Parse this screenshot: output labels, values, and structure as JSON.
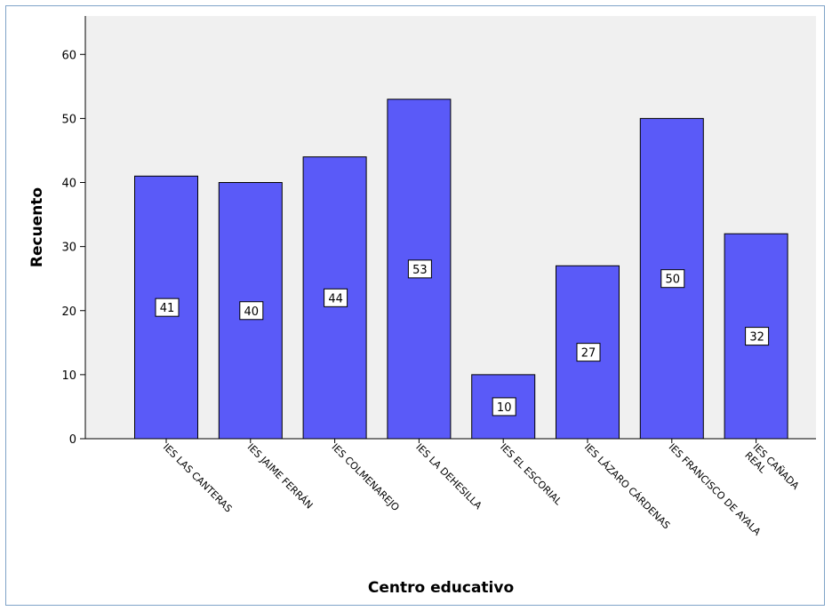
{
  "chart_data": {
    "type": "bar",
    "categories": [
      [
        "IES LAS CANTERAS"
      ],
      [
        "IES JAIME FERRÁN"
      ],
      [
        "IES COLMENAREJO"
      ],
      [
        "IES LA DEHESILLA"
      ],
      [
        "IES EL ESCORIAL"
      ],
      [
        "IES LÁZARO CÁRDENAS"
      ],
      [
        "IES FRANCISCO DE AYALA"
      ],
      [
        "IES CAÑADA",
        "REAL"
      ]
    ],
    "values": [
      41,
      40,
      44,
      53,
      10,
      27,
      50,
      32
    ],
    "data_labels": [
      "41",
      "40",
      "44",
      "53",
      "10",
      "27",
      "50",
      "32"
    ],
    "xlabel": "Centro educativo",
    "ylabel": "Recuento",
    "ylim": [
      0,
      66
    ],
    "yticks": [
      0,
      10,
      20,
      30,
      40,
      50,
      60
    ],
    "grid": false,
    "bar_color": "#5a5af8",
    "plot_background": "#f0f0f0"
  }
}
